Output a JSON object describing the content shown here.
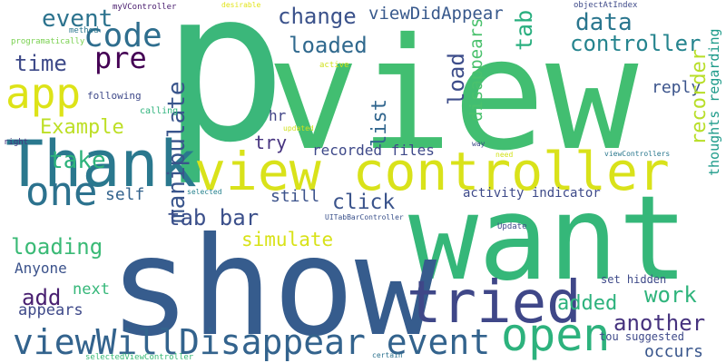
{
  "word_cloud": {
    "background": "#ffffff",
    "words": [
      {
        "text": "p",
        "color": "#3bb77a"
      },
      {
        "text": "view",
        "color": "#42be71"
      },
      {
        "text": "want",
        "color": "#35b779"
      },
      {
        "text": "show",
        "color": "#365c8d"
      },
      {
        "text": "view controller",
        "color": "#d9e21a"
      },
      {
        "text": "Thank",
        "color": "#2a788e"
      },
      {
        "text": "tried",
        "color": "#3f4788"
      },
      {
        "text": "open",
        "color": "#2db27d"
      },
      {
        "text": "viewWillDisappear event",
        "color": "#33638d"
      },
      {
        "text": "app",
        "color": "#dde318"
      },
      {
        "text": "one",
        "color": "#2c728e"
      },
      {
        "text": "code",
        "color": "#2e6e8e"
      },
      {
        "text": "event",
        "color": "#2c738e"
      },
      {
        "text": "pre",
        "color": "#440154"
      },
      {
        "text": "time",
        "color": "#3e4a89"
      },
      {
        "text": "manipulate",
        "color": "#39558c"
      },
      {
        "text": "Example",
        "color": "#bddf26"
      },
      {
        "text": "take",
        "color": "#2eb37c"
      },
      {
        "text": "change",
        "color": "#3b528b"
      },
      {
        "text": "loaded",
        "color": "#30698e"
      },
      {
        "text": "viewDidAppear",
        "color": "#38598c"
      },
      {
        "text": "list",
        "color": "#31668e"
      },
      {
        "text": "disappears",
        "color": "#4ac16d"
      },
      {
        "text": "tab",
        "color": "#29af7f"
      },
      {
        "text": "load",
        "color": "#3d4d8a"
      },
      {
        "text": "data",
        "color": "#2a768e"
      },
      {
        "text": "controller",
        "color": "#25848e"
      },
      {
        "text": "reply",
        "color": "#3a538b"
      },
      {
        "text": "recorder",
        "color": "#b8de29"
      },
      {
        "text": "thoughts regarding",
        "color": "#1e9b8a"
      },
      {
        "text": "view controller",
        "color": "#d9e21a"
      },
      {
        "text": "hr",
        "color": "#414487"
      },
      {
        "text": "try",
        "color": "#46337f"
      },
      {
        "text": "recorded files",
        "color": "#3e4989"
      },
      {
        "text": "click",
        "color": "#3a538b"
      },
      {
        "text": "tab bar",
        "color": "#3c508b"
      },
      {
        "text": "self",
        "color": "#33638d"
      },
      {
        "text": "still",
        "color": "#3b528b"
      },
      {
        "text": "simulate",
        "color": "#d8e219"
      },
      {
        "text": "activity indicator",
        "color": "#3e4a89"
      },
      {
        "text": "loading",
        "color": "#3aba76"
      },
      {
        "text": "Anyone",
        "color": "#3b528b"
      },
      {
        "text": "add",
        "color": "#481f70"
      },
      {
        "text": "next",
        "color": "#35b779"
      },
      {
        "text": "appears",
        "color": "#3e4989"
      },
      {
        "text": "added",
        "color": "#2db27d"
      },
      {
        "text": "work",
        "color": "#2fb47c"
      },
      {
        "text": "another",
        "color": "#46327e"
      },
      {
        "text": "occurs",
        "color": "#39568c"
      },
      {
        "text": "set hidden",
        "color": "#3e4a89"
      },
      {
        "text": "tou suggested",
        "color": "#3e4989"
      },
      {
        "text": "following",
        "color": "#3e4989"
      },
      {
        "text": "calling",
        "color": "#2eb37c"
      },
      {
        "text": "programatically",
        "color": "#7ad151"
      },
      {
        "text": "method",
        "color": "#2a768e"
      },
      {
        "text": "myVController",
        "color": "#481b6d"
      },
      {
        "text": "desirable",
        "color": "#e2e418"
      },
      {
        "text": "objectAtIndex",
        "color": "#3e4a89"
      },
      {
        "text": "active",
        "color": "#d0e11c"
      },
      {
        "text": "updated",
        "color": "#d0e11c"
      },
      {
        "text": "right",
        "color": "#46327e"
      },
      {
        "text": "way",
        "color": "#3e4a89"
      },
      {
        "text": "need",
        "color": "#d2e21b"
      },
      {
        "text": "viewControllers",
        "color": "#2a788e"
      },
      {
        "text": "selected",
        "color": "#26828e"
      },
      {
        "text": "UITabBarController",
        "color": "#3b528b"
      },
      {
        "text": "Update",
        "color": "#3e4a89"
      },
      {
        "text": "selectedViewController",
        "color": "#3aba76"
      },
      {
        "text": "certain",
        "color": "#2c728e"
      }
    ]
  }
}
